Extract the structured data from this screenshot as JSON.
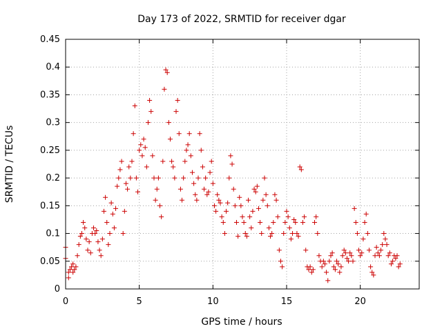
{
  "chart_data": {
    "type": "scatter",
    "title": "Day 173 of 2022, SRMTID for receiver dgar",
    "xlabel": "GPS time / hours",
    "ylabel": "SRMTID / TECUs",
    "xlim": [
      0,
      24
    ],
    "ylim": [
      0,
      0.45
    ],
    "xticks": [
      0,
      5,
      10,
      15,
      20
    ],
    "xtick_labels": [
      "0",
      "5",
      "10",
      "15",
      "20"
    ],
    "yticks": [
      0,
      0.05,
      0.1,
      0.15,
      0.2,
      0.25,
      0.3,
      0.35,
      0.4,
      0.45
    ],
    "ytick_labels": [
      "0",
      "0.05",
      "0.1",
      "0.15",
      "0.2",
      "0.25",
      "0.3",
      "0.35",
      "0.4",
      "0.45"
    ],
    "grid": true,
    "marker": "plus",
    "series_color": "#cc0000",
    "series": [
      {
        "name": "SRMTID",
        "points": [
          [
            0.0,
            0.075
          ],
          [
            0.0,
            0.055
          ],
          [
            0.2,
            0.02
          ],
          [
            0.2,
            0.03
          ],
          [
            0.3,
            0.035
          ],
          [
            0.4,
            0.04
          ],
          [
            0.5,
            0.045
          ],
          [
            0.5,
            0.03
          ],
          [
            0.6,
            0.035
          ],
          [
            0.7,
            0.04
          ],
          [
            0.8,
            0.06
          ],
          [
            0.9,
            0.08
          ],
          [
            1.0,
            0.095
          ],
          [
            1.1,
            0.1
          ],
          [
            1.2,
            0.12
          ],
          [
            1.3,
            0.11
          ],
          [
            1.4,
            0.09
          ],
          [
            1.5,
            0.07
          ],
          [
            1.6,
            0.085
          ],
          [
            1.7,
            0.065
          ],
          [
            1.8,
            0.1
          ],
          [
            1.9,
            0.11
          ],
          [
            2.0,
            0.1
          ],
          [
            2.1,
            0.105
          ],
          [
            2.2,
            0.085
          ],
          [
            2.3,
            0.07
          ],
          [
            2.4,
            0.06
          ],
          [
            2.5,
            0.09
          ],
          [
            2.6,
            0.14
          ],
          [
            2.7,
            0.165
          ],
          [
            2.8,
            0.12
          ],
          [
            2.9,
            0.08
          ],
          [
            3.0,
            0.1
          ],
          [
            3.1,
            0.155
          ],
          [
            3.2,
            0.135
          ],
          [
            3.3,
            0.11
          ],
          [
            3.4,
            0.145
          ],
          [
            3.5,
            0.185
          ],
          [
            3.6,
            0.2
          ],
          [
            3.7,
            0.215
          ],
          [
            3.8,
            0.23
          ],
          [
            3.9,
            0.1
          ],
          [
            4.0,
            0.14
          ],
          [
            4.1,
            0.19
          ],
          [
            4.2,
            0.18
          ],
          [
            4.3,
            0.22
          ],
          [
            4.4,
            0.2
          ],
          [
            4.5,
            0.23
          ],
          [
            4.6,
            0.28
          ],
          [
            4.7,
            0.33
          ],
          [
            4.8,
            0.2
          ],
          [
            4.9,
            0.175
          ],
          [
            5.0,
            0.25
          ],
          [
            5.1,
            0.26
          ],
          [
            5.2,
            0.24
          ],
          [
            5.3,
            0.27
          ],
          [
            5.4,
            0.255
          ],
          [
            5.5,
            0.22
          ],
          [
            5.6,
            0.3
          ],
          [
            5.7,
            0.34
          ],
          [
            5.8,
            0.32
          ],
          [
            5.9,
            0.24
          ],
          [
            6.0,
            0.2
          ],
          [
            6.1,
            0.16
          ],
          [
            6.2,
            0.18
          ],
          [
            6.3,
            0.2
          ],
          [
            6.4,
            0.15
          ],
          [
            6.5,
            0.13
          ],
          [
            6.6,
            0.23
          ],
          [
            6.7,
            0.36
          ],
          [
            6.8,
            0.395
          ],
          [
            6.9,
            0.39
          ],
          [
            7.0,
            0.3
          ],
          [
            7.1,
            0.27
          ],
          [
            7.2,
            0.23
          ],
          [
            7.3,
            0.22
          ],
          [
            7.4,
            0.2
          ],
          [
            7.5,
            0.32
          ],
          [
            7.6,
            0.34
          ],
          [
            7.7,
            0.28
          ],
          [
            7.8,
            0.18
          ],
          [
            7.9,
            0.16
          ],
          [
            8.0,
            0.2
          ],
          [
            8.1,
            0.23
          ],
          [
            8.2,
            0.25
          ],
          [
            8.3,
            0.26
          ],
          [
            8.4,
            0.28
          ],
          [
            8.5,
            0.24
          ],
          [
            8.6,
            0.21
          ],
          [
            8.7,
            0.19
          ],
          [
            8.8,
            0.17
          ],
          [
            8.9,
            0.16
          ],
          [
            9.0,
            0.2
          ],
          [
            9.1,
            0.28
          ],
          [
            9.2,
            0.25
          ],
          [
            9.3,
            0.22
          ],
          [
            9.4,
            0.18
          ],
          [
            9.5,
            0.2
          ],
          [
            9.6,
            0.17
          ],
          [
            9.7,
            0.175
          ],
          [
            9.8,
            0.21
          ],
          [
            9.9,
            0.23
          ],
          [
            10.0,
            0.19
          ],
          [
            10.1,
            0.15
          ],
          [
            10.2,
            0.14
          ],
          [
            10.3,
            0.17
          ],
          [
            10.4,
            0.16
          ],
          [
            10.5,
            0.155
          ],
          [
            10.6,
            0.13
          ],
          [
            10.7,
            0.12
          ],
          [
            10.8,
            0.1
          ],
          [
            10.9,
            0.14
          ],
          [
            11.0,
            0.155
          ],
          [
            11.1,
            0.2
          ],
          [
            11.2,
            0.24
          ],
          [
            11.3,
            0.225
          ],
          [
            11.4,
            0.18
          ],
          [
            11.5,
            0.15
          ],
          [
            11.6,
            0.12
          ],
          [
            11.7,
            0.095
          ],
          [
            11.8,
            0.165
          ],
          [
            11.9,
            0.15
          ],
          [
            12.0,
            0.13
          ],
          [
            12.1,
            0.12
          ],
          [
            12.2,
            0.1
          ],
          [
            12.3,
            0.095
          ],
          [
            12.4,
            0.16
          ],
          [
            12.5,
            0.13
          ],
          [
            12.6,
            0.11
          ],
          [
            12.7,
            0.14
          ],
          [
            12.8,
            0.18
          ],
          [
            12.9,
            0.175
          ],
          [
            13.0,
            0.185
          ],
          [
            13.1,
            0.145
          ],
          [
            13.2,
            0.12
          ],
          [
            13.3,
            0.1
          ],
          [
            13.4,
            0.16
          ],
          [
            13.5,
            0.2
          ],
          [
            13.6,
            0.17
          ],
          [
            13.7,
            0.15
          ],
          [
            13.8,
            0.11
          ],
          [
            13.9,
            0.095
          ],
          [
            14.0,
            0.1
          ],
          [
            14.1,
            0.12
          ],
          [
            14.2,
            0.17
          ],
          [
            14.3,
            0.16
          ],
          [
            14.4,
            0.13
          ],
          [
            14.5,
            0.07
          ],
          [
            14.6,
            0.05
          ],
          [
            14.7,
            0.04
          ],
          [
            14.8,
            0.1
          ],
          [
            14.9,
            0.12
          ],
          [
            15.0,
            0.14
          ],
          [
            15.1,
            0.13
          ],
          [
            15.2,
            0.11
          ],
          [
            15.3,
            0.09
          ],
          [
            15.4,
            0.1
          ],
          [
            15.5,
            0.125
          ],
          [
            15.6,
            0.12
          ],
          [
            15.7,
            0.1
          ],
          [
            15.8,
            0.095
          ],
          [
            15.9,
            0.22
          ],
          [
            16.0,
            0.215
          ],
          [
            16.1,
            0.12
          ],
          [
            16.2,
            0.13
          ],
          [
            16.3,
            0.07
          ],
          [
            16.4,
            0.04
          ],
          [
            16.5,
            0.035
          ],
          [
            16.6,
            0.04
          ],
          [
            16.7,
            0.03
          ],
          [
            16.8,
            0.035
          ],
          [
            16.9,
            0.12
          ],
          [
            17.0,
            0.13
          ],
          [
            17.1,
            0.1
          ],
          [
            17.2,
            0.06
          ],
          [
            17.3,
            0.05
          ],
          [
            17.4,
            0.04
          ],
          [
            17.5,
            0.05
          ],
          [
            17.6,
            0.045
          ],
          [
            17.7,
            0.03
          ],
          [
            17.8,
            0.015
          ],
          [
            17.9,
            0.05
          ],
          [
            18.0,
            0.06
          ],
          [
            18.1,
            0.065
          ],
          [
            18.2,
            0.04
          ],
          [
            18.3,
            0.035
          ],
          [
            18.4,
            0.05
          ],
          [
            18.5,
            0.045
          ],
          [
            18.6,
            0.03
          ],
          [
            18.7,
            0.04
          ],
          [
            18.8,
            0.06
          ],
          [
            18.9,
            0.07
          ],
          [
            19.0,
            0.065
          ],
          [
            19.1,
            0.055
          ],
          [
            19.2,
            0.05
          ],
          [
            19.3,
            0.065
          ],
          [
            19.4,
            0.06
          ],
          [
            19.5,
            0.05
          ],
          [
            19.6,
            0.145
          ],
          [
            19.7,
            0.12
          ],
          [
            19.8,
            0.1
          ],
          [
            19.9,
            0.07
          ],
          [
            20.0,
            0.06
          ],
          [
            20.1,
            0.065
          ],
          [
            20.2,
            0.09
          ],
          [
            20.3,
            0.12
          ],
          [
            20.4,
            0.135
          ],
          [
            20.5,
            0.1
          ],
          [
            20.6,
            0.07
          ],
          [
            20.7,
            0.04
          ],
          [
            20.8,
            0.03
          ],
          [
            20.9,
            0.025
          ],
          [
            21.0,
            0.06
          ],
          [
            21.1,
            0.075
          ],
          [
            21.2,
            0.065
          ],
          [
            21.3,
            0.06
          ],
          [
            21.4,
            0.07
          ],
          [
            21.5,
            0.08
          ],
          [
            21.6,
            0.1
          ],
          [
            21.7,
            0.09
          ],
          [
            21.8,
            0.08
          ],
          [
            21.9,
            0.06
          ],
          [
            22.0,
            0.065
          ],
          [
            22.1,
            0.045
          ],
          [
            22.2,
            0.05
          ],
          [
            22.3,
            0.06
          ],
          [
            22.4,
            0.055
          ],
          [
            22.5,
            0.06
          ],
          [
            22.6,
            0.04
          ],
          [
            22.7,
            0.045
          ]
        ]
      }
    ]
  }
}
